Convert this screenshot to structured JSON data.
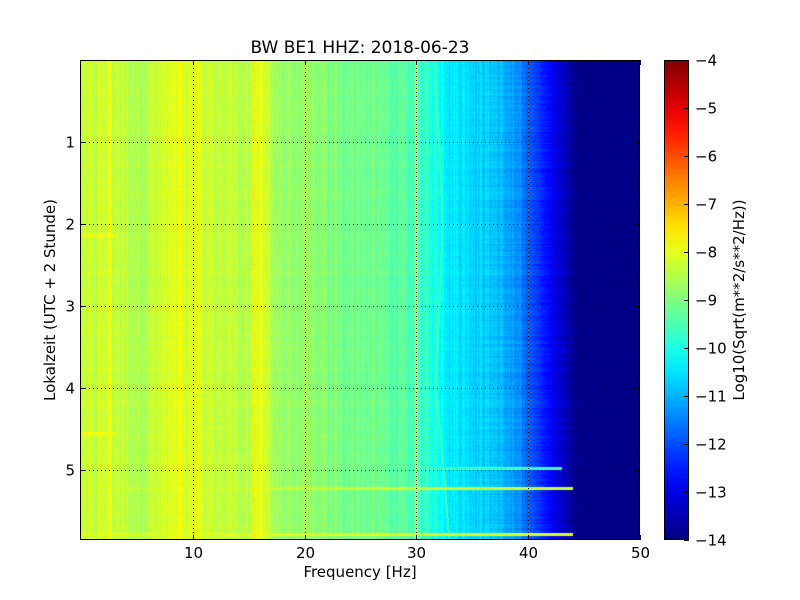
{
  "chart_data": {
    "type": "heatmap",
    "title": "BW BE1 HHZ: 2018-06-23",
    "xlabel": "Frequency [Hz]",
    "ylabel": "Lokalzeit (UTC + 2 Stunde)",
    "colorbar_label": "Log10(Sqrt(m**2/s**2/Hz))",
    "xlim": [
      0,
      50
    ],
    "ylim": [
      5.85,
      0
    ],
    "x_ticks": [
      10,
      20,
      30,
      40,
      50
    ],
    "x_tick_labels": [
      "10",
      "20",
      "30",
      "40",
      "50"
    ],
    "y_ticks": [
      1,
      2,
      3,
      4,
      5
    ],
    "y_tick_labels": [
      "1",
      "2",
      "3",
      "4",
      "5"
    ],
    "color_range": [
      -14,
      -4
    ],
    "colorbar_ticks": [
      -4,
      -5,
      -6,
      -7,
      -8,
      -9,
      -10,
      -11,
      -12,
      -13,
      -14
    ],
    "colorbar_tick_labels": [
      "−4",
      "−5",
      "−6",
      "−7",
      "−8",
      "−9",
      "−10",
      "−11",
      "−12",
      "−13",
      "−14"
    ],
    "colormap": "jet",
    "grid": true,
    "frequency_profile": {
      "frequency_hz": [
        0,
        2,
        5,
        8,
        10,
        12,
        15,
        16,
        18,
        20,
        22,
        25,
        28,
        30,
        32,
        33,
        35,
        37,
        38,
        39,
        40,
        41,
        42,
        43,
        44,
        45,
        50
      ],
      "level": [
        -8.4,
        -8.2,
        -8.5,
        -8.1,
        -8.2,
        -8.3,
        -8.4,
        -8.1,
        -8.8,
        -8.8,
        -9.0,
        -9.1,
        -9.3,
        -9.6,
        -10.1,
        -10.4,
        -10.6,
        -10.8,
        -11.1,
        -11.4,
        -11.8,
        -12.3,
        -12.8,
        -13.3,
        -13.7,
        -13.9,
        -13.95
      ]
    },
    "events": [
      {
        "time_h": 5.22,
        "freq_max_hz": 45,
        "level": -8.3
      },
      {
        "time_h": 5.78,
        "freq_max_hz": 44,
        "level": -8.1
      },
      {
        "time_h": 4.97,
        "freq_max_hz": 43,
        "level": -9.6
      },
      {
        "time_h": 2.13,
        "freq_max_hz": 3,
        "level": -7.9
      },
      {
        "time_h": 4.55,
        "freq_max_hz": 3,
        "level": -7.8
      }
    ],
    "vertical_lines": [
      {
        "freq_hz": 2.5,
        "level": -7.9
      },
      {
        "freq_hz": 8.8,
        "level": -7.7
      },
      {
        "freq_hz": 10.3,
        "level": -7.8
      },
      {
        "freq_hz": 15.5,
        "level": -7.6
      },
      {
        "freq_hz": 16.0,
        "level": -7.9
      },
      {
        "freq_hz": 30.0,
        "level": -8.3
      }
    ],
    "drift_line": {
      "times_h": [
        0,
        1,
        2,
        3,
        4,
        5,
        5.85
      ],
      "freq_hz": [
        31.5,
        32.0,
        32.3,
        32.0,
        31.7,
        32.4,
        32.9
      ],
      "level": -9.6
    }
  }
}
